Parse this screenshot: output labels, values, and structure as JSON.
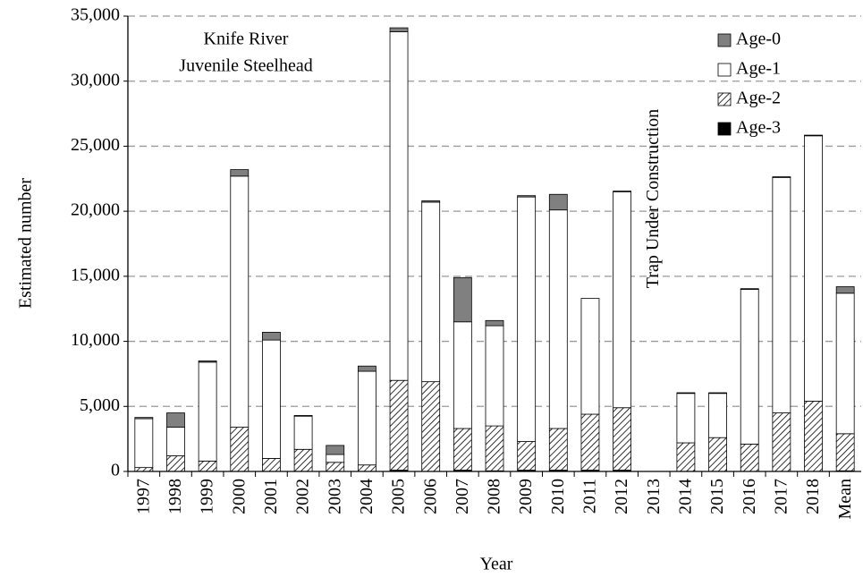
{
  "chart_data": {
    "type": "stacked_bar",
    "title": [
      "Knife River",
      "Juvenile Steelhead"
    ],
    "ylabel": "Estimated number",
    "xlabel": "Year",
    "annotation": "Trap Under Construction",
    "categories": [
      "1997",
      "1998",
      "1999",
      "2000",
      "2001",
      "2002",
      "2003",
      "2004",
      "2005",
      "2006",
      "2007",
      "2008",
      "2009",
      "2010",
      "2011",
      "2012",
      "2013",
      "2014",
      "2015",
      "2016",
      "2017",
      "2018",
      "Mean"
    ],
    "series": [
      {
        "name": "Age-0",
        "color": "#808080",
        "values": [
          100,
          1100,
          100,
          500,
          600,
          50,
          700,
          400,
          300,
          100,
          3400,
          400,
          100,
          1200,
          0,
          50,
          null,
          50,
          50,
          50,
          50,
          50,
          500
        ]
      },
      {
        "name": "Age-1",
        "color": "#ffffff",
        "values": [
          3750,
          2200,
          7600,
          19300,
          9100,
          2550,
          600,
          7200,
          26800,
          13800,
          8200,
          7700,
          18800,
          16800,
          8900,
          16600,
          null,
          3800,
          3400,
          11900,
          18100,
          20400,
          10800
        ]
      },
      {
        "name": "Age-2",
        "color": "#ffffff",
        "hatch": true,
        "values": [
          300,
          1200,
          800,
          3400,
          1000,
          1700,
          700,
          500,
          6900,
          6900,
          3200,
          3450,
          2200,
          3200,
          4300,
          4800,
          null,
          2200,
          2600,
          2100,
          4500,
          5400,
          2850
        ]
      },
      {
        "name": "Age-3",
        "color": "#000000",
        "values": [
          0,
          0,
          0,
          0,
          0,
          0,
          0,
          0,
          100,
          0,
          100,
          50,
          100,
          100,
          100,
          100,
          null,
          0,
          0,
          0,
          0,
          0,
          50
        ]
      }
    ],
    "ylim": [
      0,
      35000
    ],
    "yticks": [
      0,
      {
        "value": 5000,
        "label": "5,000"
      },
      {
        "value": 10000,
        "label": "10,000"
      },
      {
        "value": 15000,
        "label": "15,000"
      },
      {
        "value": 20000,
        "label": "20,000"
      },
      {
        "value": 25000,
        "label": "25,000"
      },
      {
        "value": 30000,
        "label": "30,000"
      },
      {
        "value": 35000,
        "label": "35,000"
      }
    ],
    "grid": true,
    "legend": "upper right"
  }
}
